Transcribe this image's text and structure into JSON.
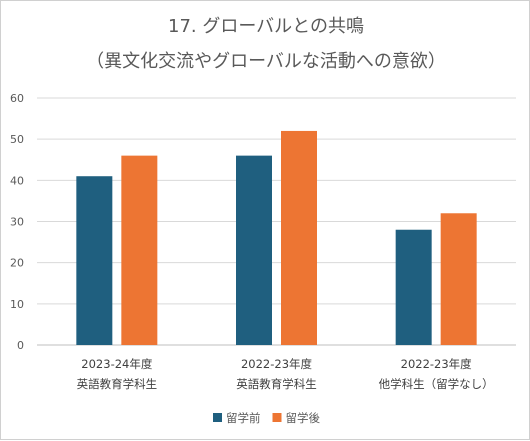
{
  "chart_data": {
    "type": "bar",
    "title": [
      "17. グローバルとの共鳴",
      "（異文化交流やグローバルな活動への意欲）"
    ],
    "categories": [
      [
        "2023-24年度",
        "英語教育学科生"
      ],
      [
        "2022-23年度",
        "英語教育学科生"
      ],
      [
        "2022-23年度",
        "他学科生（留学なし）"
      ]
    ],
    "series": [
      {
        "name": "留学前",
        "color": "#1f5f7f",
        "values": [
          41,
          46,
          28
        ]
      },
      {
        "name": "留学後",
        "color": "#ed7533",
        "values": [
          46,
          52,
          32
        ]
      }
    ],
    "ylim": [
      0,
      60
    ],
    "yticks": [
      0,
      10,
      20,
      30,
      40,
      50,
      60
    ],
    "grid": true,
    "legend_position": "bottom",
    "xlabel": "",
    "ylabel": ""
  }
}
